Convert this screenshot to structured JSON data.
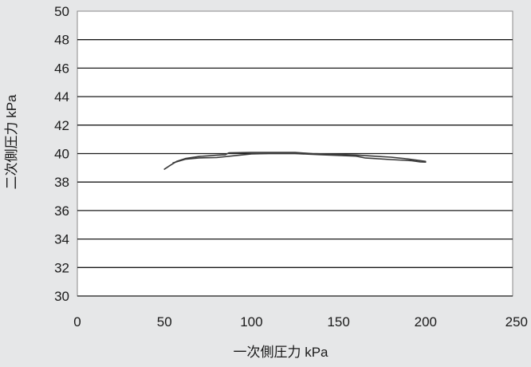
{
  "chart_data": {
    "type": "line",
    "title": "",
    "xlabel": "一次側圧力 kPa",
    "ylabel": "二次側圧力 kPa",
    "xlim": [
      0,
      250
    ],
    "ylim": [
      30,
      50
    ],
    "xticks": [
      0,
      50,
      100,
      150,
      200,
      250
    ],
    "yticks": [
      30,
      32,
      34,
      36,
      38,
      40,
      42,
      44,
      46,
      48,
      50
    ],
    "grid": "horizontal",
    "series": [
      {
        "values": [
          [
            50,
            38.9
          ],
          [
            53,
            39.15
          ],
          [
            57,
            39.45
          ],
          [
            62,
            39.65
          ],
          [
            70,
            39.8
          ],
          [
            80,
            39.88
          ],
          [
            85,
            39.92
          ],
          [
            87,
            40.05
          ],
          [
            100,
            40.08
          ],
          [
            115,
            40.08
          ],
          [
            125,
            40.08
          ],
          [
            135,
            40.0
          ],
          [
            150,
            39.95
          ],
          [
            160,
            39.9
          ],
          [
            170,
            39.82
          ],
          [
            180,
            39.75
          ],
          [
            190,
            39.62
          ],
          [
            196,
            39.52
          ],
          [
            200,
            39.45
          ]
        ]
      },
      {
        "values": [
          [
            55,
            39.35
          ],
          [
            62,
            39.6
          ],
          [
            70,
            39.7
          ],
          [
            80,
            39.72
          ],
          [
            90,
            39.85
          ],
          [
            100,
            39.98
          ],
          [
            110,
            40.0
          ],
          [
            125,
            40.0
          ],
          [
            140,
            39.92
          ],
          [
            150,
            39.87
          ],
          [
            160,
            39.82
          ],
          [
            165,
            39.7
          ],
          [
            180,
            39.58
          ],
          [
            192,
            39.5
          ],
          [
            197,
            39.42
          ],
          [
            200,
            39.4
          ]
        ]
      }
    ],
    "colors": {
      "background": "#e6e7e8",
      "plot_area": "#ffffff",
      "line": "#3a3a3a",
      "grid": "#1a1a1a"
    }
  }
}
